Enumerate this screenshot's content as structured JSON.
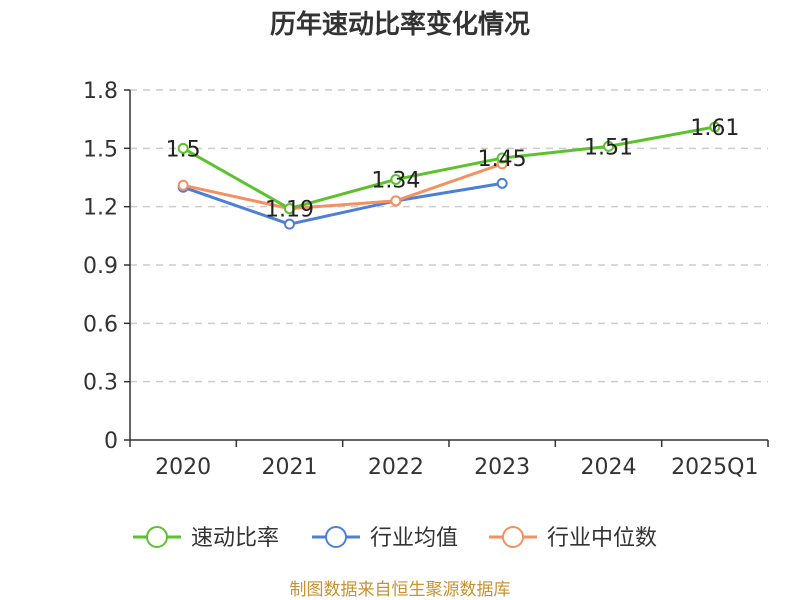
{
  "chart_data": {
    "type": "line",
    "title": "历年速动比率变化情况",
    "categories": [
      "2020",
      "2021",
      "2022",
      "2023",
      "2024",
      "2025Q1"
    ],
    "y_ticks": [
      "0",
      "0.3",
      "0.6",
      "0.9",
      "1.2",
      "1.5",
      "1.8"
    ],
    "ylim": [
      0,
      1.8
    ],
    "grid": true,
    "legend_position": "bottom",
    "series": [
      {
        "name": "速动比率",
        "color": "#5dc12e",
        "values": [
          1.5,
          1.19,
          1.34,
          1.45,
          1.51,
          1.61
        ],
        "labels": [
          "1.5",
          "1.19",
          "1.34",
          "1.45",
          "1.51",
          "1.61"
        ]
      },
      {
        "name": "行业均值",
        "color": "#4e7fd8",
        "values": [
          1.3,
          1.11,
          1.23,
          1.32,
          null,
          null
        ]
      },
      {
        "name": "行业中位数",
        "color": "#f59062",
        "values": [
          1.31,
          1.19,
          1.23,
          1.42,
          null,
          null
        ]
      }
    ],
    "source": "制图数据来自恒生聚源数据库"
  }
}
